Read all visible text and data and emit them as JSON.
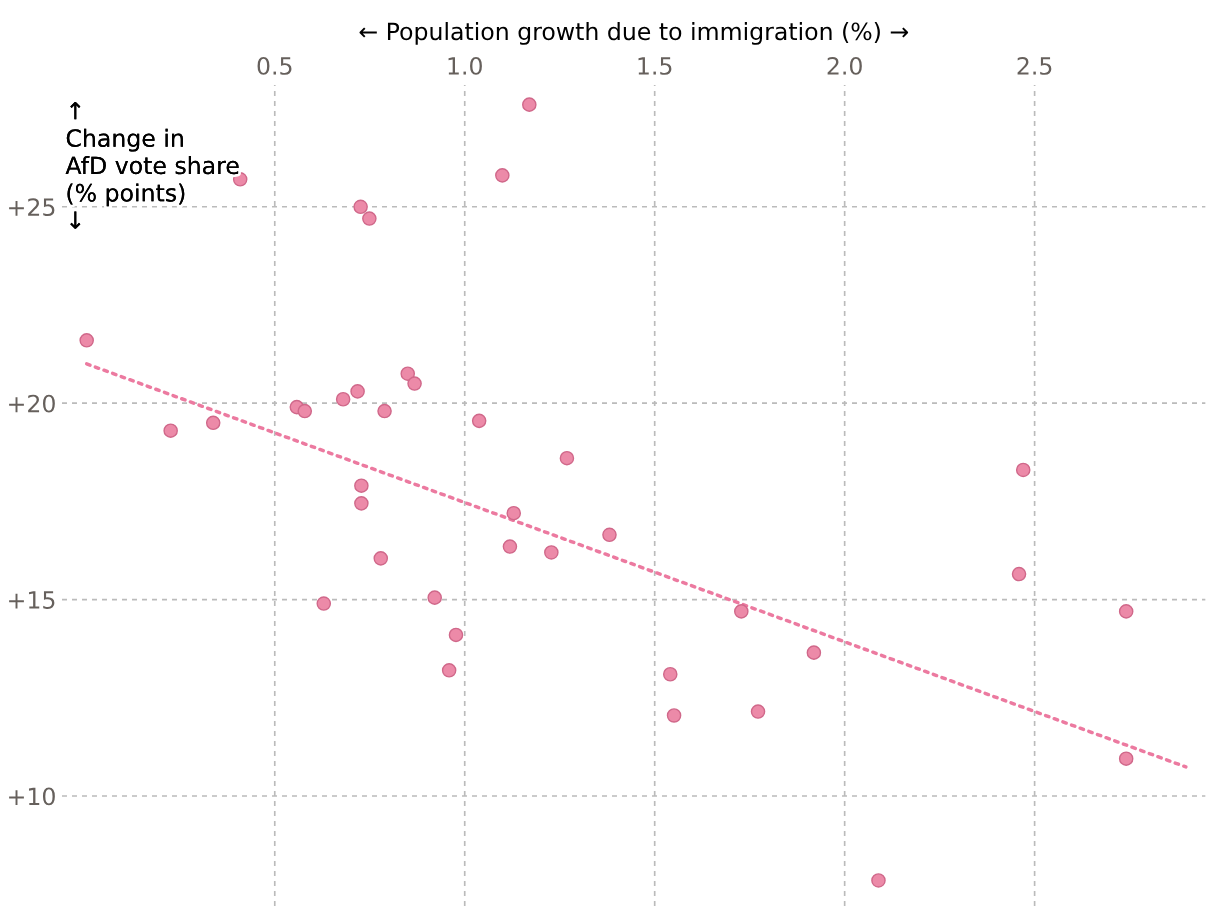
{
  "chart_data": {
    "type": "scatter",
    "xlabel": "← Population growth due to immigration (%) →",
    "ylabel": "↑\nChange in\nAfD vote share\n(% points)\n↓",
    "xlim": [
      -0.06,
      2.95
    ],
    "ylim": [
      7.2,
      28.1
    ],
    "xticks": [
      0.5,
      {
        "value": 1.0,
        "label": "1.0"
      },
      1.5,
      {
        "value": 2.0,
        "label": "2.0"
      },
      2.5
    ],
    "yticks": [
      {
        "value": 10,
        "label": "+10"
      },
      {
        "value": 15,
        "label": "+15"
      },
      {
        "value": 20,
        "label": "+20"
      },
      {
        "value": 25,
        "label": "+25"
      }
    ],
    "grid": true,
    "series": [
      {
        "marker": "circle",
        "color": "#ec8aa8",
        "x": [
          0.005,
          0.226,
          0.338,
          0.409,
          0.558,
          0.579,
          0.629,
          0.68,
          0.718,
          0.726,
          0.749,
          0.728,
          0.728,
          0.779,
          0.789,
          0.85,
          0.868,
          0.921,
          0.959,
          0.977,
          1.038,
          1.099,
          1.119,
          1.129,
          1.17,
          1.228,
          1.269,
          1.381,
          1.541,
          1.551,
          1.728,
          1.772,
          1.919,
          2.089,
          2.459,
          2.47,
          2.741,
          2.741
        ],
        "values": [
          21.6,
          19.3,
          19.5,
          25.7,
          19.9,
          19.8,
          14.9,
          20.1,
          20.3,
          25.0,
          24.7,
          17.9,
          17.45,
          16.05,
          19.8,
          20.75,
          20.5,
          15.05,
          13.2,
          14.1,
          19.55,
          25.8,
          16.35,
          17.2,
          27.6,
          16.2,
          18.6,
          16.65,
          13.1,
          12.05,
          14.7,
          12.15,
          13.65,
          7.85,
          15.65,
          18.3,
          14.7,
          10.95
        ]
      },
      {
        "type": "line",
        "marker": "none",
        "color": "#ec7aa0",
        "line_style": "dotted",
        "x": [
          0.005,
          2.898
        ],
        "values": [
          21.0,
          10.74
        ]
      }
    ]
  }
}
